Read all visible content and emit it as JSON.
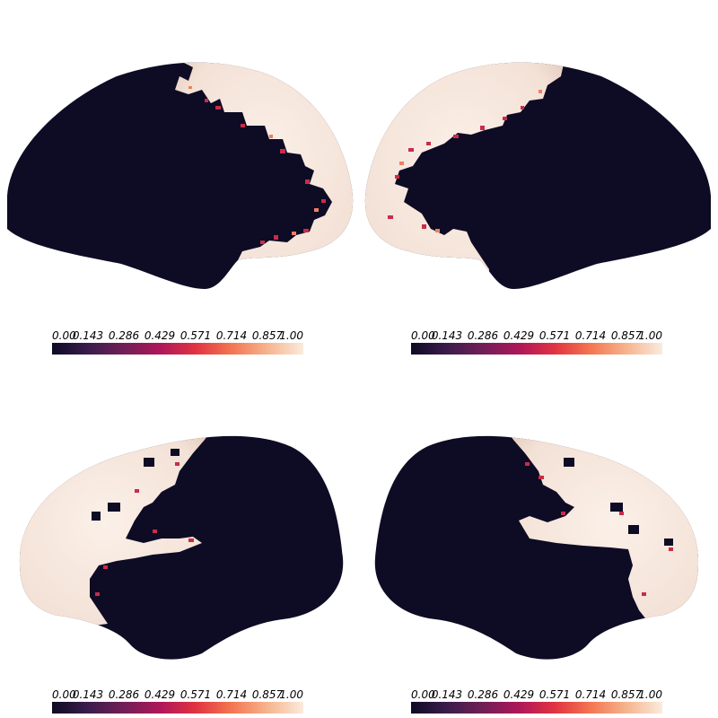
{
  "colormap": {
    "name": "rocket",
    "low_color": "#0e0b24",
    "high_color": "#f7e6dc",
    "stops": [
      "#0e0b24",
      "#3b1c4c",
      "#711f57",
      "#ad1759",
      "#e13342",
      "#f37651",
      "#f6b48e",
      "#faebdd"
    ]
  },
  "panels": [
    {
      "id": "left-lateral",
      "colorbar_ticks": [
        "0.00",
        "0.143",
        "0.286",
        "0.429",
        "0.571",
        "0.714",
        "0.857",
        "1.00"
      ]
    },
    {
      "id": "right-lateral",
      "colorbar_ticks": [
        "0.00",
        "0.143",
        "0.286",
        "0.429",
        "0.571",
        "0.714",
        "0.857",
        "1.00"
      ]
    },
    {
      "id": "left-medial",
      "colorbar_ticks": [
        "0.00",
        "0.143",
        "0.286",
        "0.429",
        "0.571",
        "0.714",
        "0.857",
        "1.00"
      ]
    },
    {
      "id": "right-medial",
      "colorbar_ticks": [
        "0.00",
        "0.143",
        "0.286",
        "0.429",
        "0.571",
        "0.714",
        "0.857",
        "1.00"
      ]
    }
  ]
}
